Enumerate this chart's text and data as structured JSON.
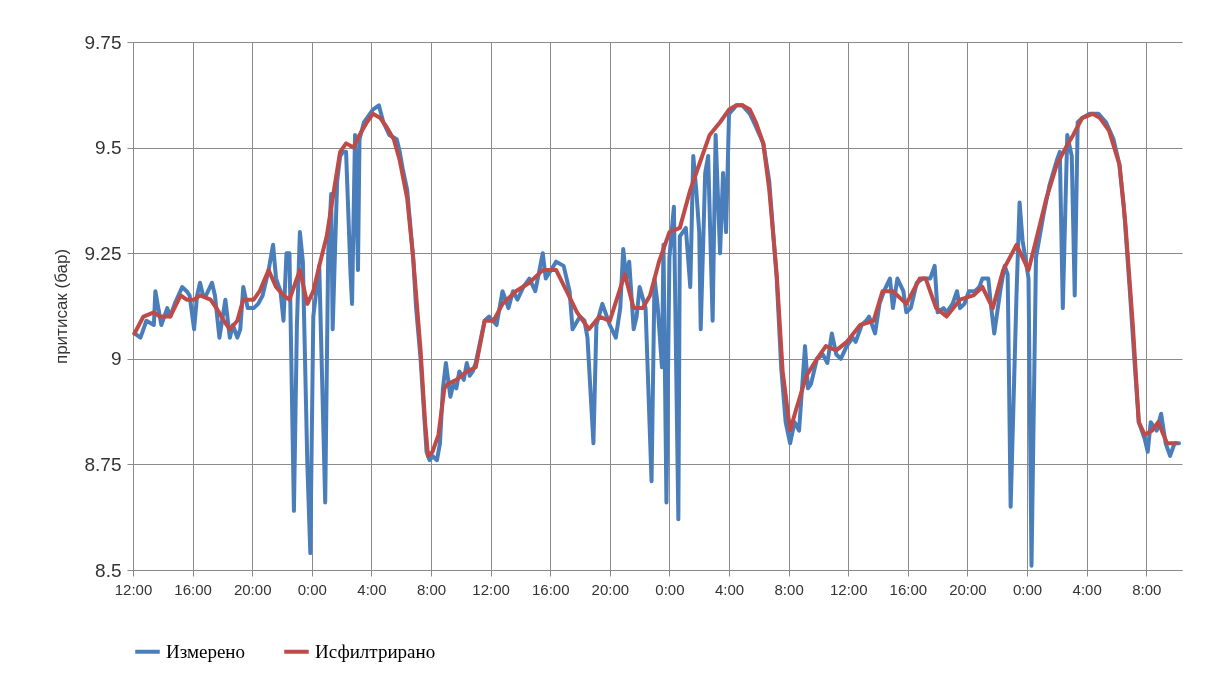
{
  "chart_data": {
    "type": "line",
    "ylabel": "притисак (бар)",
    "legend": "bottom",
    "grid": true,
    "xlim": [
      "--01-01T12:00",
      "--01-04T10:24"
    ],
    "xticks": [
      {
        "value": "--01-01T12:00",
        "label": "12:00"
      },
      {
        "value": "--01-01T16:00",
        "label": "16:00"
      },
      {
        "value": "--01-01T20:00",
        "label": "20:00"
      },
      {
        "value": "--01-02T00:00",
        "label": "0:00"
      },
      {
        "value": "--01-02T04:00",
        "label": "4:00"
      },
      {
        "value": "--01-02T08:00",
        "label": "8:00"
      },
      {
        "value": "--01-02T12:00",
        "label": "12:00"
      },
      {
        "value": "--01-02T16:00",
        "label": "16:00"
      },
      {
        "value": "--01-02T20:00",
        "label": "20:00"
      },
      {
        "value": "--01-03T00:00",
        "label": "0:00"
      },
      {
        "value": "--01-03T04:00",
        "label": "4:00"
      },
      {
        "value": "--01-03T08:00",
        "label": "8:00"
      },
      {
        "value": "--01-03T12:00",
        "label": "12:00"
      },
      {
        "value": "--01-03T16:00",
        "label": "16:00"
      },
      {
        "value": "--01-03T20:00",
        "label": "20:00"
      },
      {
        "value": "--01-04T00:00",
        "label": "0:00"
      },
      {
        "value": "--01-04T04:00",
        "label": "4:00"
      },
      {
        "value": "--01-04T08:00",
        "label": "8:00"
      }
    ],
    "ylim": [
      8.5,
      9.75
    ],
    "yticks": [
      8.5,
      8.75,
      9,
      9.25,
      9.5,
      9.75
    ],
    "series": [
      {
        "name": "Измерено",
        "color": "#4a7ebb",
        "x": [
          "--01-01T12:06",
          "--01-01T12:30",
          "--01-01T12:54",
          "--01-01T13:24",
          "--01-01T13:30",
          "--01-01T13:42",
          "--01-01T13:54",
          "--01-01T14:18",
          "--01-01T14:30",
          "--01-01T14:48",
          "--01-01T15:18",
          "--01-01T15:36",
          "--01-01T15:48",
          "--01-01T16:06",
          "--01-01T16:18",
          "--01-01T16:30",
          "--01-01T16:42",
          "--01-01T16:54",
          "--01-01T17:18",
          "--01-01T17:30",
          "--01-01T17:48",
          "--01-01T18:12",
          "--01-01T18:30",
          "--01-01T18:42",
          "--01-01T19:00",
          "--01-01T19:12",
          "--01-01T19:24",
          "--01-01T19:42",
          "--01-01T20:06",
          "--01-01T20:24",
          "--01-01T20:42",
          "--01-01T21:06",
          "--01-01T21:24",
          "--01-01T21:36",
          "--01-01T21:54",
          "--01-01T22:06",
          "--01-01T22:18",
          "--01-01T22:30",
          "--01-01T22:48",
          "--01-01T23:00",
          "--01-01T23:12",
          "--01-01T23:24",
          "--01-01T23:42",
          "--01-01T23:54",
          "--01-02T00:06",
          "--01-02T00:30",
          "--01-02T00:54",
          "--01-02T01:06",
          "--01-02T01:18",
          "--01-02T01:24",
          "--01-02T01:42",
          "--01-02T01:54",
          "--01-02T02:06",
          "--01-02T02:18",
          "--01-02T02:36",
          "--01-02T02:42",
          "--01-02T02:54",
          "--01-02T03:06",
          "--01-02T03:12",
          "--01-02T03:30",
          "--01-02T03:42",
          "--01-02T04:06",
          "--01-02T04:30",
          "--01-02T04:48",
          "--01-02T05:12",
          "--01-02T05:42",
          "--01-02T05:54",
          "--01-02T06:06",
          "--01-02T06:24",
          "--01-02T06:36",
          "--01-02T06:48",
          "--01-02T07:00",
          "--01-02T07:18",
          "--01-02T07:30",
          "--01-02T07:42",
          "--01-02T07:54",
          "--01-02T08:06",
          "--01-02T08:24",
          "--01-02T08:36",
          "--01-02T08:48",
          "--01-02T09:00",
          "--01-02T09:18",
          "--01-02T09:30",
          "--01-02T09:42",
          "--01-02T09:54",
          "--01-02T10:12",
          "--01-02T10:24",
          "--01-02T10:36",
          "--01-02T10:48",
          "--01-02T11:00",
          "--01-02T11:36",
          "--01-02T11:54",
          "--01-02T12:24",
          "--01-02T12:48",
          "--01-02T13:12",
          "--01-02T13:30",
          "--01-02T13:48",
          "--01-02T14:12",
          "--01-02T14:36",
          "--01-02T15:00",
          "--01-02T15:30",
          "--01-02T15:42",
          "--01-02T16:24",
          "--01-02T16:54",
          "--01-02T17:18",
          "--01-02T17:30",
          "--01-02T18:00",
          "--01-02T18:18",
          "--01-02T18:30",
          "--01-02T18:54",
          "--01-02T19:06",
          "--01-02T19:30",
          "--01-02T20:00",
          "--01-02T20:24",
          "--01-02T20:42",
          "--01-02T20:54",
          "--01-02T21:06",
          "--01-02T21:18",
          "--01-02T21:36",
          "--01-02T21:48",
          "--01-02T22:00",
          "--01-02T22:24",
          "--01-02T22:48",
          "--01-02T23:00",
          "--01-02T23:12",
          "--01-02T23:30",
          "--01-02T23:36",
          "--01-02T23:48",
          "--01-03T00:00",
          "--01-03T00:12",
          "--01-03T00:18",
          "--01-03T00:36",
          "--01-03T00:42",
          "--01-03T01:06",
          "--01-03T01:24",
          "--01-03T01:36",
          "--01-03T01:48",
          "--01-03T02:00",
          "--01-03T02:06",
          "--01-03T02:24",
          "--01-03T02:36",
          "--01-03T02:54",
          "--01-03T03:06",
          "--01-03T03:24",
          "--01-03T03:36",
          "--01-03T03:48",
          "--01-03T04:00",
          "--01-03T04:30",
          "--01-03T04:54",
          "--01-03T05:24",
          "--01-03T05:48",
          "--01-03T06:18",
          "--01-03T06:42",
          "--01-03T07:12",
          "--01-03T07:30",
          "--01-03T07:48",
          "--01-03T08:06",
          "--01-03T08:24",
          "--01-03T08:42",
          "--01-03T09:06",
          "--01-03T09:18",
          "--01-03T09:30",
          "--01-03T09:54",
          "--01-03T10:18",
          "--01-03T10:36",
          "--01-03T10:54",
          "--01-03T11:12",
          "--01-03T11:30",
          "--01-03T11:54",
          "--01-03T12:18",
          "--01-03T12:30",
          "--01-03T12:54",
          "--01-03T13:12",
          "--01-03T13:24",
          "--01-03T13:48",
          "--01-03T14:06",
          "--01-03T14:24",
          "--01-03T14:48",
          "--01-03T15:00",
          "--01-03T15:18",
          "--01-03T15:42",
          "--01-03T15:54",
          "--01-03T16:12",
          "--01-03T16:36",
          "--01-03T17:00",
          "--01-03T17:30",
          "--01-03T17:48",
          "--01-03T18:00",
          "--01-03T18:24",
          "--01-03T18:36",
          "--01-03T19:00",
          "--01-03T19:18",
          "--01-03T19:30",
          "--01-03T19:48",
          "--01-03T20:06",
          "--01-03T20:30",
          "--01-03T20:48",
          "--01-03T21:00",
          "--01-03T21:24",
          "--01-03T21:36",
          "--01-03T21:48",
          "--01-03T22:12",
          "--01-03T22:30",
          "--01-03T22:42",
          "--01-03T22:54",
          "--01-03T23:18",
          "--01-03T23:30",
          "--01-03T23:42",
          "--01-04T00:06",
          "--01-04T00:18",
          "--01-04T00:36",
          "--01-04T01:06",
          "--01-04T01:30",
          "--01-04T02:00",
          "--01-04T02:12",
          "--01-04T02:24",
          "--01-04T02:42",
          "--01-04T03:00",
          "--01-04T03:12",
          "--01-04T03:24",
          "--01-04T03:42",
          "--01-04T04:12",
          "--01-04T04:48",
          "--01-04T05:18",
          "--01-04T05:48",
          "--01-04T06:12",
          "--01-04T06:30",
          "--01-04T06:54",
          "--01-04T07:12",
          "--01-04T07:30",
          "--01-04T07:54",
          "--01-04T08:06",
          "--01-04T08:18",
          "--01-04T08:42",
          "--01-04T09:00",
          "--01-04T09:18",
          "--01-04T09:36",
          "--01-04T09:54",
          "--01-04T10:12"
        ],
        "values": [
          9.06,
          9.05,
          9.09,
          9.08,
          9.16,
          9.12,
          9.08,
          9.12,
          9.1,
          9.13,
          9.17,
          9.16,
          9.15,
          9.07,
          9.15,
          9.18,
          9.15,
          9.15,
          9.18,
          9.15,
          9.05,
          9.14,
          9.05,
          9.08,
          9.05,
          9.07,
          9.17,
          9.12,
          9.12,
          9.13,
          9.15,
          9.21,
          9.27,
          9.19,
          9.16,
          9.09,
          9.25,
          9.25,
          8.64,
          9.08,
          9.3,
          9.23,
          8.75,
          8.54,
          9.1,
          9.22,
          8.66,
          9.25,
          9.39,
          9.07,
          9.42,
          9.48,
          9.49,
          9.49,
          9.2,
          9.13,
          9.53,
          9.21,
          9.52,
          9.56,
          9.57,
          9.59,
          9.6,
          9.56,
          9.53,
          9.52,
          9.49,
          9.45,
          9.4,
          9.32,
          9.24,
          9.12,
          9.0,
          8.89,
          8.78,
          8.76,
          8.77,
          8.76,
          8.8,
          8.93,
          8.99,
          8.91,
          8.94,
          8.93,
          8.97,
          8.95,
          8.99,
          8.96,
          8.97,
          8.99,
          9.09,
          9.1,
          9.08,
          9.16,
          9.12,
          9.16,
          9.14,
          9.17,
          9.19,
          9.16,
          9.25,
          9.19,
          9.23,
          9.22,
          9.16,
          9.07,
          9.1,
          9.09,
          9.05,
          8.8,
          9.08,
          9.13,
          9.08,
          9.05,
          9.12,
          9.26,
          9.19,
          9.23,
          9.07,
          9.1,
          9.17,
          9.12,
          8.71,
          9.19,
          9.13,
          8.98,
          9.27,
          8.66,
          9.24,
          9.32,
          9.36,
          8.62,
          9.29,
          9.31,
          9.17,
          9.48,
          9.4,
          9.3,
          9.07,
          9.44,
          9.48,
          9.09,
          9.53,
          9.25,
          9.44,
          9.3,
          9.58,
          9.6,
          9.6,
          9.58,
          9.55,
          9.51,
          9.42,
          9.19,
          8.98,
          8.85,
          8.8,
          8.85,
          8.83,
          9.03,
          8.93,
          8.94,
          9.0,
          9.01,
          8.99,
          9.06,
          9.01,
          9.0,
          9.03,
          9.05,
          9.04,
          9.08,
          9.09,
          9.1,
          9.06,
          9.13,
          9.16,
          9.19,
          9.12,
          9.19,
          9.16,
          9.11,
          9.12,
          9.18,
          9.19,
          9.19,
          9.22,
          9.11,
          9.12,
          9.11,
          9.13,
          9.16,
          9.12,
          9.13,
          9.16,
          9.16,
          9.17,
          9.19,
          9.19,
          9.12,
          9.06,
          9.16,
          9.22,
          9.2,
          8.65,
          9.16,
          9.37,
          9.28,
          9.19,
          8.51,
          9.24,
          9.34,
          9.41,
          9.47,
          9.49,
          9.12,
          9.53,
          9.48,
          9.15,
          9.56,
          9.57,
          9.58,
          9.58,
          9.56,
          9.52,
          9.46,
          9.36,
          9.16,
          9.0,
          8.85,
          8.81,
          8.78,
          8.85,
          8.83,
          8.87,
          8.8,
          8.77,
          8.8,
          8.8
        ]
      },
      {
        "name": "Исфилтрирано",
        "color": "#be4b48",
        "x": [
          "--01-01T12:06",
          "--01-01T12:42",
          "--01-01T13:24",
          "--01-01T13:48",
          "--01-01T14:30",
          "--01-01T15:12",
          "--01-01T15:36",
          "--01-01T16:06",
          "--01-01T16:30",
          "--01-01T17:12",
          "--01-01T17:36",
          "--01-01T18:06",
          "--01-01T18:30",
          "--01-01T19:00",
          "--01-01T19:24",
          "--01-01T20:06",
          "--01-01T20:30",
          "--01-01T21:06",
          "--01-01T21:36",
          "--01-01T22:06",
          "--01-01T22:30",
          "--01-01T23:12",
          "--01-01T23:42",
          "--01-02T00:06",
          "--01-02T00:30",
          "--01-02T01:00",
          "--01-02T01:24",
          "--01-02T01:54",
          "--01-02T02:18",
          "--01-02T02:48",
          "--01-02T03:12",
          "--01-02T03:42",
          "--01-02T04:06",
          "--01-02T04:36",
          "--01-02T05:00",
          "--01-02T05:30",
          "--01-02T05:54",
          "--01-02T06:24",
          "--01-02T06:48",
          "--01-02T07:18",
          "--01-02T07:36",
          "--01-02T07:48",
          "--01-02T08:06",
          "--01-02T08:30",
          "--01-02T08:54",
          "--01-02T09:06",
          "--01-02T09:42",
          "--01-02T10:24",
          "--01-02T11:00",
          "--01-02T11:36",
          "--01-02T12:12",
          "--01-02T12:48",
          "--01-02T13:42",
          "--01-02T14:36",
          "--01-02T15:30",
          "--01-02T16:24",
          "--01-02T17:06",
          "--01-02T17:48",
          "--01-02T18:36",
          "--01-02T19:18",
          "--01-02T20:00",
          "--01-02T21:00",
          "--01-02T21:36",
          "--01-02T22:12",
          "--01-02T22:42",
          "--01-02T23:18",
          "--01-03T00:00",
          "--01-03T00:42",
          "--01-03T01:24",
          "--01-03T02:00",
          "--01-03T02:42",
          "--01-03T03:24",
          "--01-03T04:00",
          "--01-03T04:30",
          "--01-03T04:54",
          "--01-03T05:24",
          "--01-03T05:48",
          "--01-03T06:18",
          "--01-03T06:42",
          "--01-03T07:12",
          "--01-03T07:36",
          "--01-03T08:06",
          "--01-03T08:30",
          "--01-03T09:12",
          "--01-03T09:54",
          "--01-03T10:30",
          "--01-03T11:12",
          "--01-03T11:54",
          "--01-03T12:48",
          "--01-03T13:42",
          "--01-03T14:18",
          "--01-03T15:00",
          "--01-03T15:54",
          "--01-03T16:48",
          "--01-03T17:12",
          "--01-03T17:54",
          "--01-03T18:36",
          "--01-03T19:30",
          "--01-03T20:24",
          "--01-03T21:00",
          "--01-03T21:42",
          "--01-03T22:24",
          "--01-03T23:18",
          "--01-04T00:06",
          "--01-04T00:36",
          "--01-04T01:18",
          "--01-04T02:00",
          "--01-04T02:36",
          "--01-04T03:06",
          "--01-04T03:42",
          "--01-04T04:24",
          "--01-04T04:54",
          "--01-04T05:30",
          "--01-04T06:12",
          "--01-04T06:36",
          "--01-04T07:06",
          "--01-04T07:30",
          "--01-04T07:54",
          "--01-04T08:24",
          "--01-04T08:48",
          "--01-04T09:24",
          "--01-04T10:00"
        ],
        "values": [
          9.06,
          9.1,
          9.11,
          9.1,
          9.1,
          9.15,
          9.14,
          9.14,
          9.15,
          9.14,
          9.12,
          9.09,
          9.07,
          9.09,
          9.14,
          9.14,
          9.16,
          9.21,
          9.17,
          9.15,
          9.14,
          9.21,
          9.13,
          9.16,
          9.22,
          9.29,
          9.38,
          9.49,
          9.51,
          9.5,
          9.53,
          9.56,
          9.58,
          9.57,
          9.55,
          9.52,
          9.47,
          9.38,
          9.24,
          9.02,
          8.85,
          8.77,
          8.78,
          8.82,
          8.93,
          8.94,
          8.95,
          8.97,
          8.98,
          9.09,
          9.09,
          9.13,
          9.16,
          9.18,
          9.21,
          9.21,
          9.16,
          9.11,
          9.07,
          9.1,
          9.09,
          9.2,
          9.12,
          9.12,
          9.15,
          9.23,
          9.3,
          9.31,
          9.4,
          9.46,
          9.53,
          9.56,
          9.59,
          9.6,
          9.6,
          9.59,
          9.56,
          9.51,
          9.4,
          9.2,
          8.97,
          8.83,
          8.88,
          8.96,
          9.0,
          9.03,
          9.02,
          9.04,
          9.08,
          9.09,
          9.16,
          9.16,
          9.13,
          9.19,
          9.19,
          9.12,
          9.1,
          9.14,
          9.15,
          9.17,
          9.12,
          9.21,
          9.27,
          9.21,
          9.28,
          9.38,
          9.46,
          9.5,
          9.53,
          9.57,
          9.58,
          9.57,
          9.54,
          9.46,
          9.32,
          9.08,
          8.85,
          8.82,
          8.83,
          8.85,
          8.8,
          8.8
        ]
      }
    ]
  }
}
